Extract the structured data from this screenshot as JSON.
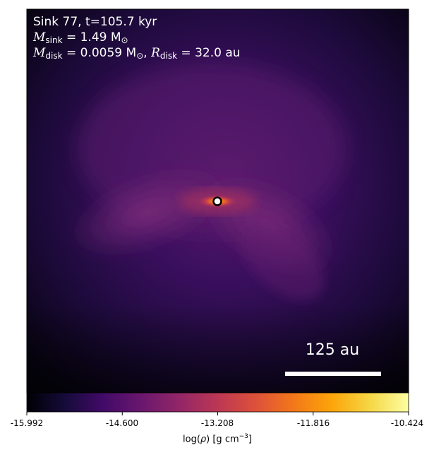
{
  "annotation": {
    "line1": "Sink 77, t=105.7 kyr",
    "msink_label": "M",
    "msink_sub": "sink",
    "msink_value": " = 1.49 M",
    "msink_unit_sub": "⊙",
    "mdisk_label": "M",
    "mdisk_sub": "disk",
    "mdisk_value": " = 0.0059 M",
    "mdisk_unit_sub": "⊙",
    "mdisk_sep": ", ",
    "rdisk_label": "R",
    "rdisk_sub": "disk",
    "rdisk_value": " = 32.0 au"
  },
  "scale_bar": {
    "label": "125 au"
  },
  "colorbar": {
    "colormap": "inferno",
    "min": -15.992,
    "max": -10.424,
    "ticks": [
      "-15.992",
      "-14.600",
      "-13.208",
      "-11.816",
      "-10.424"
    ],
    "label_prefix": "log(",
    "label_rho": "ρ",
    "label_mid": ") [g cm",
    "label_sup": "−3",
    "label_suffix": "]"
  },
  "sink_marker": {
    "fill": "#ffffff",
    "edge": "#000000"
  }
}
